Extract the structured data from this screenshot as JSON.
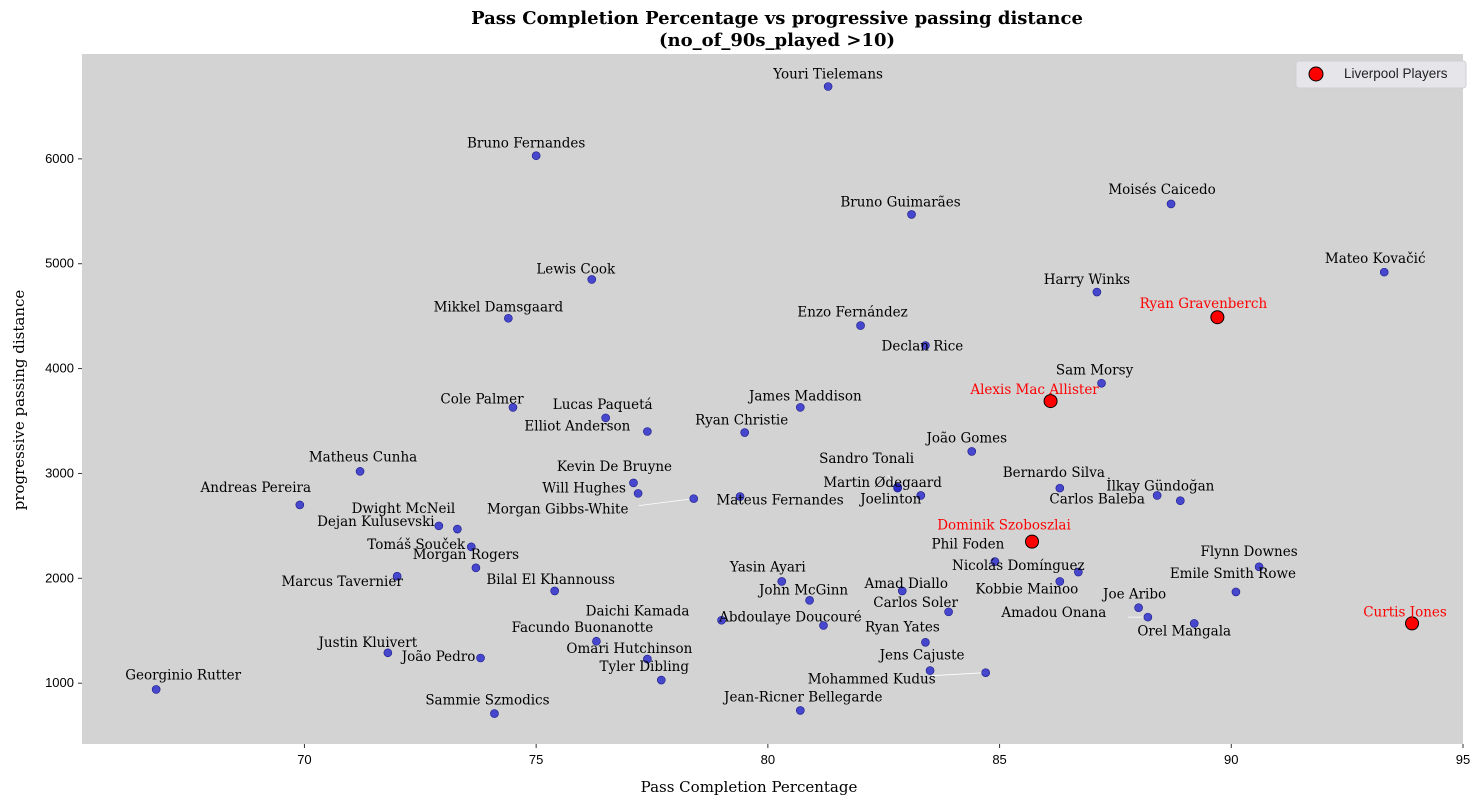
{
  "chart_data": {
    "type": "scatter",
    "title_line1": "Pass Completion Percentage vs progressive passing distance",
    "title_line2": "(no_of_90s_played >10)",
    "xlabel": "Pass Completion Percentage",
    "ylabel": "progressive passing distance",
    "xlim": [
      65.2,
      95.0
    ],
    "ylim": [
      420,
      7000
    ],
    "xticks": [
      "70",
      "75",
      "80",
      "85",
      "90",
      "95"
    ],
    "yticks": [
      "1000",
      "2000",
      "3000",
      "4000",
      "5000",
      "6000"
    ],
    "grid": false,
    "background": "#d3d3d3",
    "colors": {
      "regular": "#2424cc",
      "liverpool": "#ff0000",
      "liverpool_text": "#ff0000"
    },
    "legend": {
      "position": "top-right",
      "label": "Liverpool Players"
    },
    "points": [
      {
        "name": "Youri Tielemans",
        "x": 81.3,
        "y": 6690,
        "liverpool": false
      },
      {
        "name": "Bruno Fernandes",
        "x": 75.0,
        "y": 6030,
        "liverpool": false
      },
      {
        "name": "Bruno Guimarães",
        "x": 83.1,
        "y": 5470,
        "liverpool": false
      },
      {
        "name": "Moisés Caicedo",
        "x": 88.7,
        "y": 5570,
        "liverpool": false
      },
      {
        "name": "Mateo Kovačić",
        "x": 93.3,
        "y": 4920,
        "liverpool": false
      },
      {
        "name": "Lewis Cook",
        "x": 76.2,
        "y": 4850,
        "liverpool": false
      },
      {
        "name": "Mikkel Damsgaard",
        "x": 74.4,
        "y": 4480,
        "liverpool": false
      },
      {
        "name": "Harry Winks",
        "x": 87.1,
        "y": 4730,
        "liverpool": false
      },
      {
        "name": "Ryan Gravenberch",
        "x": 89.7,
        "y": 4490,
        "liverpool": true
      },
      {
        "name": "Enzo Fernández",
        "x": 82.0,
        "y": 4410,
        "liverpool": false
      },
      {
        "name": "Declan Rice",
        "x": 83.4,
        "y": 4220,
        "liverpool": false
      },
      {
        "name": "Sam Morsy",
        "x": 87.2,
        "y": 3860,
        "liverpool": false
      },
      {
        "name": "Alexis Mac Allister",
        "x": 86.1,
        "y": 3690,
        "liverpool": true
      },
      {
        "name": "Cole Palmer",
        "x": 74.5,
        "y": 3630,
        "liverpool": false
      },
      {
        "name": "Lucas Paquetá",
        "x": 76.5,
        "y": 3530,
        "liverpool": false
      },
      {
        "name": "James Maddison",
        "x": 80.7,
        "y": 3630,
        "liverpool": false
      },
      {
        "name": "Elliot Anderson",
        "x": 77.4,
        "y": 3400,
        "liverpool": false
      },
      {
        "name": "Ryan Christie",
        "x": 79.5,
        "y": 3390,
        "liverpool": false
      },
      {
        "name": "João Gomes",
        "x": 84.4,
        "y": 3210,
        "liverpool": false
      },
      {
        "name": "Matheus Cunha",
        "x": 71.2,
        "y": 3020,
        "liverpool": false
      },
      {
        "name": "Kevin De Bruyne",
        "x": 77.1,
        "y": 2910,
        "liverpool": false
      },
      {
        "name": "Sandro Tonali",
        "x": 82.8,
        "y": 2870,
        "liverpool": false
      },
      {
        "name": "Martin Ødegaard",
        "x": 82.8,
        "y": 2860,
        "liverpool": false
      },
      {
        "name": "Bernardo Silva",
        "x": 86.3,
        "y": 2860,
        "liverpool": false
      },
      {
        "name": "Will Hughes",
        "x": 77.2,
        "y": 2810,
        "liverpool": false
      },
      {
        "name": "Morgan Gibbs-White",
        "x": 78.4,
        "y": 2760,
        "liverpool": false
      },
      {
        "name": "Mateus Fernandes",
        "x": 79.4,
        "y": 2780,
        "liverpool": false
      },
      {
        "name": "Joelinton",
        "x": 83.3,
        "y": 2790,
        "liverpool": false
      },
      {
        "name": "İlkay Gündoğan",
        "x": 88.9,
        "y": 2740,
        "liverpool": false
      },
      {
        "name": "Carlos Baleba",
        "x": 88.4,
        "y": 2790,
        "liverpool": false
      },
      {
        "name": "Andreas Pereira",
        "x": 69.9,
        "y": 2700,
        "liverpool": false
      },
      {
        "name": "Dwight McNeil",
        "x": 73.3,
        "y": 2470,
        "liverpool": false
      },
      {
        "name": "Dejan Kulusevski",
        "x": 72.9,
        "y": 2500,
        "liverpool": false
      },
      {
        "name": "Tomáš Souček",
        "x": 73.6,
        "y": 2300,
        "liverpool": false
      },
      {
        "name": "Dominik Szoboszlai",
        "x": 85.7,
        "y": 2350,
        "liverpool": true
      },
      {
        "name": "Phil Foden",
        "x": 84.9,
        "y": 2160,
        "liverpool": false
      },
      {
        "name": "Nicolás Domínguez",
        "x": 86.7,
        "y": 2060,
        "liverpool": false
      },
      {
        "name": "Flynn Downes",
        "x": 90.6,
        "y": 2110,
        "liverpool": false
      },
      {
        "name": "Morgan Rogers",
        "x": 73.7,
        "y": 2100,
        "liverpool": false
      },
      {
        "name": "Marcus Tavernier",
        "x": 72.0,
        "y": 2020,
        "liverpool": false
      },
      {
        "name": "Yasin Ayari",
        "x": 80.3,
        "y": 1970,
        "liverpool": false
      },
      {
        "name": "Kobbie Mainoo",
        "x": 86.3,
        "y": 1970,
        "liverpool": false
      },
      {
        "name": "Bilal El Khannouss",
        "x": 75.4,
        "y": 1880,
        "liverpool": false
      },
      {
        "name": "Amad Diallo",
        "x": 82.9,
        "y": 1880,
        "liverpool": false
      },
      {
        "name": "Emile Smith Rowe",
        "x": 90.1,
        "y": 1870,
        "liverpool": false
      },
      {
        "name": "John McGinn",
        "x": 80.9,
        "y": 1790,
        "liverpool": false
      },
      {
        "name": "Joe Aribo",
        "x": 88.0,
        "y": 1720,
        "liverpool": false
      },
      {
        "name": "Carlos Soler",
        "x": 83.9,
        "y": 1680,
        "liverpool": false
      },
      {
        "name": "Amadou Onana",
        "x": 88.2,
        "y": 1630,
        "liverpool": false
      },
      {
        "name": "Daichi Kamada",
        "x": 79.0,
        "y": 1600,
        "liverpool": false
      },
      {
        "name": "Abdoulaye Doucouré",
        "x": 81.2,
        "y": 1550,
        "liverpool": false
      },
      {
        "name": "Orel Mangala",
        "x": 89.2,
        "y": 1570,
        "liverpool": false
      },
      {
        "name": "Curtis Jones",
        "x": 93.9,
        "y": 1570,
        "liverpool": true
      },
      {
        "name": "Facundo Buonanotte",
        "x": 76.3,
        "y": 1400,
        "liverpool": false
      },
      {
        "name": "Ryan Yates",
        "x": 83.4,
        "y": 1390,
        "liverpool": false
      },
      {
        "name": "Justin Kluivert",
        "x": 71.8,
        "y": 1290,
        "liverpool": false
      },
      {
        "name": "João Pedro",
        "x": 73.8,
        "y": 1240,
        "liverpool": false
      },
      {
        "name": "Omari Hutchinson",
        "x": 77.4,
        "y": 1230,
        "liverpool": false
      },
      {
        "name": "Jens Cajuste",
        "x": 83.5,
        "y": 1120,
        "liverpool": false
      },
      {
        "name": "Mohammed Kudus",
        "x": 84.7,
        "y": 1100,
        "liverpool": false
      },
      {
        "name": "Tyler Dibling",
        "x": 77.7,
        "y": 1030,
        "liverpool": false
      },
      {
        "name": "Georginio Rutter",
        "x": 66.8,
        "y": 940,
        "liverpool": false
      },
      {
        "name": "Jean-Ricner Bellegarde",
        "x": 80.7,
        "y": 740,
        "liverpool": false
      },
      {
        "name": "Sammie Szmodics",
        "x": 74.1,
        "y": 710,
        "liverpool": false
      }
    ]
  }
}
